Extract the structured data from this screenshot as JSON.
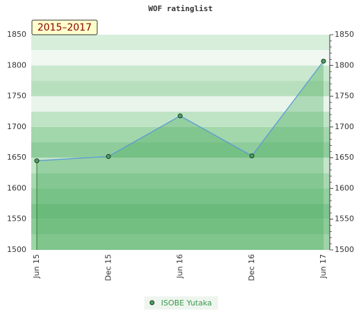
{
  "chart_data": {
    "type": "line",
    "title": "WOF ratinglist",
    "badge": "2015–2017",
    "categories": [
      "Jun 15",
      "Dec 15",
      "Jun 16",
      "Dec 16",
      "Jun 17"
    ],
    "series": [
      {
        "name": "ISOBE Yutaka",
        "color": "#5b9bd5",
        "values": [
          1645,
          1652,
          1718,
          1653,
          1807
        ]
      }
    ],
    "ylim": [
      1500,
      1850
    ],
    "yticks": [
      1500,
      1550,
      1600,
      1650,
      1700,
      1750,
      1800,
      1850
    ]
  }
}
